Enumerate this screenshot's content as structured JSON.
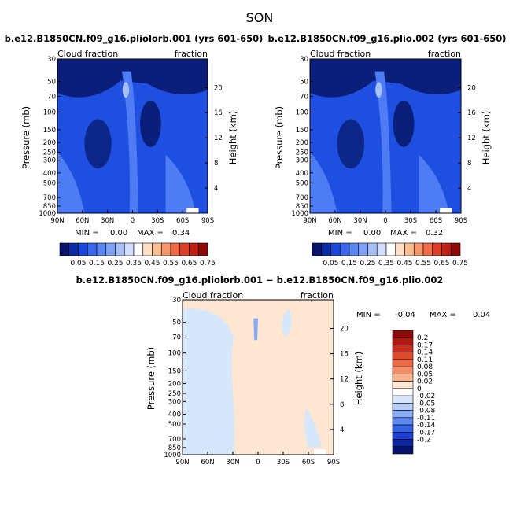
{
  "page": {
    "season": "SON",
    "colors": {
      "dark_blue": "#0a1f7a",
      "mid_blue": "#1f4fe0",
      "light_blue": "#4d7cf5",
      "pale_blue": "#d6e6fb",
      "peach": "#fde6d2",
      "white": "#ffffff"
    }
  },
  "chart_data": [
    {
      "type": "heatmap",
      "title": "b.e12.B1850CN.f09_g16.pliolorb.001 (yrs 601-650)",
      "left_label": "Cloud fraction",
      "right_label": "fraction",
      "ylabel": "Pressure (mb)",
      "y2label": "Height (km)",
      "x_ticks": [
        "90N",
        "60N",
        "30N",
        "0",
        "30S",
        "60S",
        "90S"
      ],
      "y_ticks": [
        "30",
        "50",
        "70",
        "100",
        "150",
        "200",
        "250",
        "300",
        "400",
        "500",
        "700",
        "850",
        "1000"
      ],
      "y_tick_values": [
        30,
        50,
        70,
        100,
        150,
        200,
        250,
        300,
        400,
        500,
        700,
        850,
        1000
      ],
      "y2_ticks": [
        "20",
        "16",
        "12",
        "8",
        "4"
      ],
      "y2_tick_values": [
        20,
        16,
        12,
        8,
        4
      ],
      "ylim": [
        1000,
        30
      ],
      "min_label": "MIN =",
      "min": "0.00",
      "max_label": "MAX =",
      "max": "0.34"
    },
    {
      "type": "heatmap",
      "title": "b.e12.B1850CN.f09_g16.plio.002 (yrs 601-650)",
      "left_label": "Cloud fraction",
      "right_label": "fraction",
      "ylabel": "Pressure (mb)",
      "y2label": "Height (km)",
      "x_ticks": [
        "90N",
        "60N",
        "30N",
        "0",
        "30S",
        "60S",
        "90S"
      ],
      "y_ticks": [
        "30",
        "50",
        "70",
        "100",
        "150",
        "200",
        "250",
        "300",
        "400",
        "500",
        "700",
        "850",
        "1000"
      ],
      "y_tick_values": [
        30,
        50,
        70,
        100,
        150,
        200,
        250,
        300,
        400,
        500,
        700,
        850,
        1000
      ],
      "y2_ticks": [
        "20",
        "16",
        "12",
        "8",
        "4"
      ],
      "y2_tick_values": [
        20,
        16,
        12,
        8,
        4
      ],
      "ylim": [
        1000,
        30
      ],
      "min_label": "MIN =",
      "min": "0.00",
      "max_label": "MAX =",
      "max": "0.32"
    },
    {
      "type": "heatmap",
      "title": "b.e12.B1850CN.f09_g16.pliolorb.001 − b.e12.B1850CN.f09_g16.plio.002",
      "left_label": "Cloud fraction",
      "right_label": "fraction",
      "ylabel": "Pressure (mb)",
      "y2label": "Height (km)",
      "x_ticks": [
        "90N",
        "60N",
        "30N",
        "0",
        "30S",
        "60S",
        "90S"
      ],
      "y_ticks": [
        "30",
        "50",
        "70",
        "100",
        "150",
        "200",
        "250",
        "300",
        "400",
        "500",
        "700",
        "850",
        "1000"
      ],
      "y_tick_values": [
        30,
        50,
        70,
        100,
        150,
        200,
        250,
        300,
        400,
        500,
        700,
        850,
        1000
      ],
      "y2_ticks": [
        "20",
        "16",
        "12",
        "8",
        "4"
      ],
      "y2_tick_values": [
        20,
        16,
        12,
        8,
        4
      ],
      "ylim": [
        1000,
        30
      ],
      "min_label": "MIN =",
      "min": "-0.04",
      "max_label": "MAX =",
      "max": "0.04"
    }
  ],
  "colorbar_abs": {
    "labels": [
      "0.05",
      "0.15",
      "0.25",
      "0.35",
      "0.45",
      "0.55",
      "0.65",
      "0.75"
    ],
    "colors": [
      "#08136b",
      "#0b2aa6",
      "#1c46d8",
      "#3a67ec",
      "#5a86f2",
      "#7ea2f5",
      "#a7c0f8",
      "#d2ddfb",
      "#ffffff",
      "#fde0c6",
      "#fbbd92",
      "#f7966a",
      "#ee6a45",
      "#db4028",
      "#bd2014",
      "#8e0a08"
    ]
  },
  "colorbar_diff": {
    "labels": [
      "0.2",
      "0.17",
      "0.14",
      "0.11",
      "0.08",
      "0.05",
      "0.02",
      "0",
      "-0.02",
      "-0.05",
      "-0.08",
      "-0.11",
      "-0.14",
      "-0.17",
      "-0.2"
    ],
    "colors": [
      "#8e0a08",
      "#b3180f",
      "#cc2c1a",
      "#e04a2c",
      "#ee6a45",
      "#f58c63",
      "#fab388",
      "#fde6d2",
      "#ffffff",
      "#d6e6fb",
      "#b5ccf8",
      "#89aaf4",
      "#5d88f0",
      "#3563e6",
      "#1b3fd2",
      "#0b26a0",
      "#08136b"
    ]
  }
}
